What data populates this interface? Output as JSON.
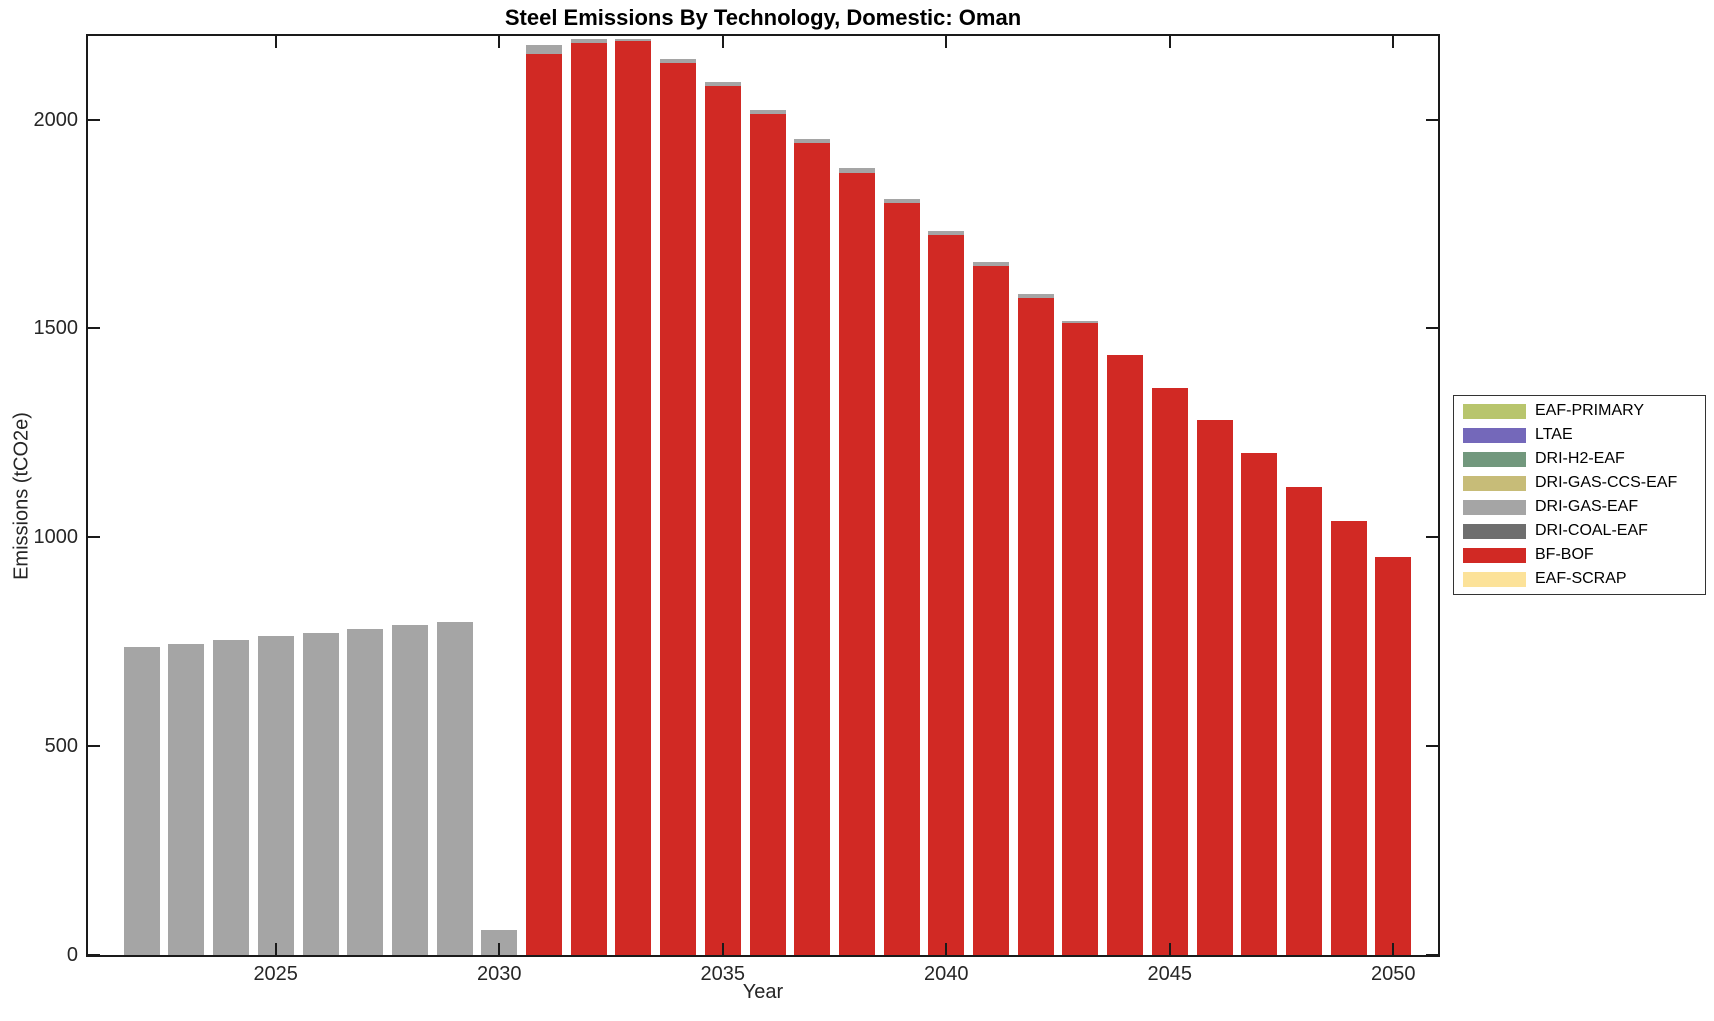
{
  "chart_data": {
    "type": "bar",
    "stacked": true,
    "title": "Steel Emissions By Technology, Domestic: Oman",
    "xlabel": "Year",
    "ylabel": "Emissions (tCO2e)",
    "xlim": [
      2020.8,
      2051.0
    ],
    "ylim": [
      0,
      2200
    ],
    "xticks": [
      2025,
      2030,
      2035,
      2040,
      2045,
      2050
    ],
    "yticks": [
      0,
      500,
      1000,
      1500,
      2000
    ],
    "grid": false,
    "legend_position": "outside-right",
    "categories": [
      2022,
      2023,
      2024,
      2025,
      2026,
      2027,
      2028,
      2029,
      2030,
      2031,
      2032,
      2033,
      2034,
      2035,
      2036,
      2037,
      2038,
      2039,
      2040,
      2041,
      2042,
      2043,
      2044,
      2045,
      2046,
      2047,
      2048,
      2049,
      2050
    ],
    "series": [
      {
        "name": "EAF-PRIMARY",
        "color": "#b8c56d",
        "values": [
          0,
          0,
          0,
          0,
          0,
          0,
          0,
          0,
          0,
          0,
          0,
          0,
          0,
          0,
          0,
          0,
          0,
          0,
          0,
          0,
          0,
          0,
          0,
          0,
          0,
          0,
          0,
          0,
          0
        ]
      },
      {
        "name": "LTAE",
        "color": "#7468ba",
        "values": [
          0,
          0,
          0,
          0,
          0,
          0,
          0,
          0,
          0,
          0,
          0,
          0,
          0,
          0,
          0,
          0,
          0,
          0,
          0,
          0,
          0,
          0,
          0,
          0,
          0,
          0,
          0,
          0,
          0
        ]
      },
      {
        "name": "DRI-H2-EAF",
        "color": "#72987d",
        "values": [
          0,
          0,
          0,
          0,
          0,
          0,
          0,
          0,
          0,
          0,
          0,
          0,
          0,
          0,
          0,
          0,
          0,
          0,
          0,
          0,
          0,
          0,
          0,
          0,
          0,
          0,
          0,
          0,
          0
        ]
      },
      {
        "name": "DRI-GAS-CCS-EAF",
        "color": "#c7bc78",
        "values": [
          0,
          0,
          0,
          0,
          0,
          0,
          0,
          0,
          0,
          0,
          0,
          0,
          0,
          0,
          0,
          0,
          0,
          0,
          0,
          0,
          0,
          0,
          0,
          0,
          0,
          0,
          0,
          0,
          0
        ]
      },
      {
        "name": "DRI-GAS-EAF",
        "color": "#a5a5a5",
        "values": [
          737,
          745,
          754,
          763,
          772,
          781,
          790,
          798,
          60,
          20,
          10,
          5,
          9,
          9,
          10,
          10,
          11,
          10,
          10,
          9,
          10,
          5,
          0,
          0,
          0,
          0,
          0,
          0,
          0
        ]
      },
      {
        "name": "DRI-COAL-EAF",
        "color": "#6e6e6e",
        "values": [
          0,
          0,
          0,
          0,
          0,
          0,
          0,
          0,
          0,
          0,
          0,
          0,
          0,
          0,
          0,
          0,
          0,
          0,
          0,
          0,
          0,
          0,
          0,
          0,
          0,
          0,
          0,
          0,
          0
        ]
      },
      {
        "name": "BF-BOF",
        "color": "#d12924",
        "values": [
          0,
          0,
          0,
          0,
          0,
          0,
          0,
          0,
          0,
          2158,
          2183,
          2187,
          2136,
          2080,
          2013,
          1943,
          1873,
          1800,
          1724,
          1649,
          1573,
          1512,
          1436,
          1358,
          1281,
          1201,
          1121,
          1038,
          952
        ]
      },
      {
        "name": "EAF-SCRAP",
        "color": "#fce299",
        "values": [
          0,
          0,
          0,
          0,
          0,
          0,
          0,
          0,
          0,
          0,
          0,
          0,
          0,
          0,
          0,
          0,
          0,
          0,
          0,
          0,
          0,
          0,
          0,
          0,
          0,
          0,
          0,
          0,
          0
        ]
      }
    ]
  }
}
